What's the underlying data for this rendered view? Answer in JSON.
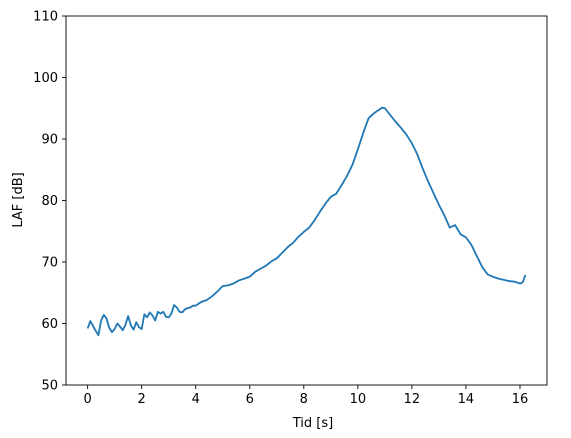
{
  "chart_data": {
    "type": "line",
    "title": "",
    "xlabel": "Tid [s]",
    "ylabel": "LAF [dB]",
    "xlim": [
      -0.8,
      17.0
    ],
    "ylim": [
      50,
      110
    ],
    "xticks": [
      0,
      2,
      4,
      6,
      8,
      10,
      12,
      14,
      16
    ],
    "yticks": [
      50,
      60,
      70,
      80,
      90,
      100,
      110
    ],
    "grid": false,
    "series": [
      {
        "color": "#1f77b4",
        "x": [
          0.0,
          0.1,
          0.2,
          0.3,
          0.4,
          0.5,
          0.6,
          0.7,
          0.8,
          0.9,
          1.0,
          1.1,
          1.2,
          1.3,
          1.4,
          1.5,
          1.6,
          1.7,
          1.8,
          1.9,
          2.0,
          2.1,
          2.2,
          2.3,
          2.4,
          2.5,
          2.6,
          2.7,
          2.8,
          2.9,
          3.0,
          3.1,
          3.2,
          3.3,
          3.4,
          3.5,
          3.6,
          3.7,
          3.8,
          3.9,
          4.0,
          4.2,
          4.4,
          4.6,
          4.8,
          5.0,
          5.2,
          5.4,
          5.6,
          5.8,
          6.0,
          6.2,
          6.4,
          6.6,
          6.8,
          7.0,
          7.2,
          7.4,
          7.6,
          7.8,
          8.0,
          8.2,
          8.4,
          8.6,
          8.8,
          9.0,
          9.2,
          9.4,
          9.6,
          9.8,
          10.0,
          10.2,
          10.4,
          10.6,
          10.8,
          10.9,
          11.0,
          11.2,
          11.4,
          11.6,
          11.8,
          12.0,
          12.2,
          12.4,
          12.6,
          12.8,
          13.0,
          13.2,
          13.4,
          13.6,
          13.8,
          14.0,
          14.2,
          14.4,
          14.6,
          14.8,
          15.0,
          15.2,
          15.4,
          15.6,
          15.8,
          16.0,
          16.1,
          16.2
        ],
        "y": [
          59.2,
          60.4,
          59.6,
          58.8,
          58.1,
          60.5,
          61.4,
          60.8,
          59.3,
          58.6,
          59.1,
          60.0,
          59.5,
          58.9,
          59.8,
          61.2,
          59.7,
          59.0,
          60.2,
          59.4,
          59.1,
          61.5,
          61.0,
          61.8,
          61.3,
          60.5,
          61.9,
          61.6,
          61.9,
          61.1,
          61.0,
          61.6,
          63.0,
          62.6,
          61.9,
          61.8,
          62.3,
          62.5,
          62.6,
          62.9,
          62.9,
          63.5,
          63.8,
          64.4,
          65.2,
          66.1,
          66.2,
          66.5,
          67.0,
          67.3,
          67.6,
          68.4,
          68.9,
          69.4,
          70.1,
          70.6,
          71.5,
          72.4,
          73.1,
          74.1,
          74.9,
          75.6,
          76.8,
          78.2,
          79.5,
          80.6,
          81.1,
          82.5,
          84.0,
          85.8,
          88.3,
          91.0,
          93.4,
          94.2,
          94.8,
          95.1,
          95.0,
          93.9,
          92.8,
          91.8,
          90.7,
          89.3,
          87.5,
          85.2,
          83.1,
          81.2,
          79.3,
          77.6,
          75.6,
          76.0,
          74.5,
          74.0,
          72.8,
          71.0,
          69.2,
          68.0,
          67.6,
          67.3,
          67.1,
          66.9,
          66.8,
          66.5,
          66.7,
          67.9
        ]
      }
    ]
  }
}
